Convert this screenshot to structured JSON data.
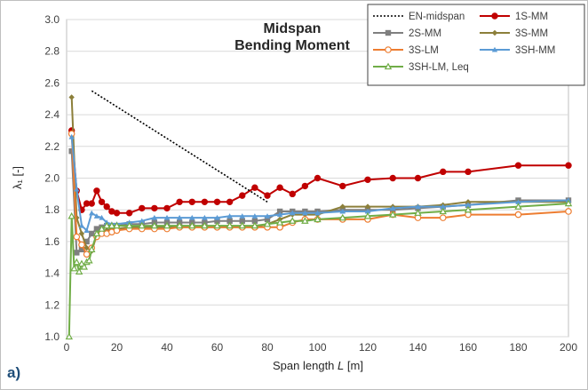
{
  "chart_data": {
    "type": "line",
    "title": "Midspan",
    "subtitle": "Bending Moment",
    "xlabel": "Span length",
    "xlabel_var": "L",
    "xlabel_unit": "[m]",
    "ylabel": "λ₁ [-]",
    "panel_label": "a)",
    "xlim": [
      0,
      200
    ],
    "ylim": [
      1.0,
      3.0
    ],
    "xticks": [
      "0",
      "20",
      "40",
      "60",
      "80",
      "100",
      "120",
      "140",
      "160",
      "180",
      "200"
    ],
    "yticks": [
      "1.0",
      "1.2",
      "1.4",
      "1.6",
      "1.8",
      "2.0",
      "2.2",
      "2.4",
      "2.6",
      "2.8",
      "3.0"
    ],
    "grid": "horizontal",
    "legend_position": "top-right",
    "series": [
      {
        "name": "EN-midspan",
        "color": "#000000",
        "style": "dotted",
        "marker": "none",
        "x": [
          10,
          80
        ],
        "y": [
          2.55,
          1.85
        ]
      },
      {
        "name": "1S-MM",
        "color": "#c00000",
        "style": "solid",
        "marker": "circle-filled",
        "x": [
          2,
          4,
          6,
          8,
          10,
          12,
          14,
          16,
          18,
          20,
          25,
          30,
          35,
          40,
          45,
          50,
          55,
          60,
          65,
          70,
          75,
          80,
          85,
          90,
          95,
          100,
          110,
          120,
          130,
          140,
          150,
          160,
          180,
          200
        ],
        "y": [
          2.3,
          1.92,
          1.8,
          1.84,
          1.84,
          1.92,
          1.85,
          1.82,
          1.79,
          1.78,
          1.78,
          1.81,
          1.81,
          1.81,
          1.85,
          1.85,
          1.85,
          1.85,
          1.85,
          1.89,
          1.94,
          1.89,
          1.94,
          1.9,
          1.95,
          2.0,
          1.95,
          1.99,
          2.0,
          2.0,
          2.04,
          2.04,
          2.08,
          2.08
        ]
      },
      {
        "name": "2S-MM",
        "color": "#7f7f7f",
        "style": "solid",
        "marker": "square-filled",
        "x": [
          2,
          4,
          6,
          8,
          10,
          12,
          14,
          16,
          18,
          20,
          25,
          30,
          35,
          40,
          45,
          50,
          55,
          60,
          65,
          70,
          75,
          80,
          85,
          90,
          95,
          100,
          110,
          120,
          130,
          140,
          150,
          160,
          180,
          200
        ],
        "y": [
          2.17,
          1.53,
          1.55,
          1.6,
          1.65,
          1.68,
          1.69,
          1.7,
          1.7,
          1.7,
          1.71,
          1.71,
          1.72,
          1.72,
          1.72,
          1.72,
          1.72,
          1.73,
          1.73,
          1.73,
          1.73,
          1.74,
          1.79,
          1.79,
          1.79,
          1.79,
          1.8,
          1.8,
          1.8,
          1.81,
          1.82,
          1.83,
          1.86,
          1.86
        ]
      },
      {
        "name": "3S-MM",
        "color": "#8c7f3a",
        "style": "solid",
        "marker": "diamond-filled",
        "x": [
          2,
          4,
          6,
          8,
          10,
          12,
          14,
          16,
          18,
          20,
          25,
          30,
          35,
          40,
          45,
          50,
          55,
          60,
          65,
          70,
          75,
          80,
          85,
          90,
          95,
          100,
          110,
          120,
          130,
          140,
          150,
          160,
          180,
          200
        ],
        "y": [
          2.51,
          1.75,
          1.65,
          1.56,
          1.54,
          1.64,
          1.66,
          1.67,
          1.68,
          1.68,
          1.69,
          1.69,
          1.69,
          1.69,
          1.69,
          1.69,
          1.69,
          1.69,
          1.69,
          1.69,
          1.69,
          1.71,
          1.74,
          1.77,
          1.77,
          1.77,
          1.82,
          1.82,
          1.82,
          1.82,
          1.83,
          1.85,
          1.85,
          1.85
        ]
      },
      {
        "name": "3S-LM",
        "color": "#ed7d31",
        "style": "solid",
        "marker": "circle-open",
        "x": [
          2,
          4,
          6,
          8,
          10,
          12,
          14,
          16,
          18,
          20,
          25,
          30,
          35,
          40,
          45,
          50,
          55,
          60,
          65,
          70,
          75,
          80,
          85,
          90,
          95,
          100,
          110,
          120,
          130,
          140,
          150,
          160,
          180,
          200
        ],
        "y": [
          2.28,
          1.63,
          1.58,
          1.52,
          1.56,
          1.63,
          1.65,
          1.65,
          1.66,
          1.67,
          1.68,
          1.68,
          1.68,
          1.68,
          1.69,
          1.69,
          1.69,
          1.69,
          1.69,
          1.69,
          1.69,
          1.69,
          1.69,
          1.72,
          1.74,
          1.74,
          1.74,
          1.74,
          1.77,
          1.75,
          1.75,
          1.77,
          1.77,
          1.79
        ]
      },
      {
        "name": "3SH-MM",
        "color": "#5b9bd5",
        "style": "solid",
        "marker": "triangle-filled",
        "x": [
          2,
          4,
          6,
          8,
          10,
          12,
          14,
          16,
          18,
          20,
          25,
          30,
          35,
          40,
          45,
          50,
          55,
          60,
          65,
          70,
          75,
          80,
          85,
          90,
          95,
          100,
          110,
          120,
          130,
          140,
          150,
          160,
          180,
          200
        ],
        "y": [
          2.26,
          1.93,
          1.7,
          1.67,
          1.78,
          1.76,
          1.75,
          1.72,
          1.71,
          1.71,
          1.72,
          1.73,
          1.75,
          1.75,
          1.75,
          1.75,
          1.75,
          1.75,
          1.76,
          1.76,
          1.76,
          1.76,
          1.77,
          1.78,
          1.78,
          1.78,
          1.79,
          1.79,
          1.81,
          1.82,
          1.82,
          1.83,
          1.85,
          1.86
        ]
      },
      {
        "name": "3SH-LM, Leq",
        "color": "#70ad47",
        "style": "solid",
        "marker": "triangle-open",
        "x": [
          1,
          2,
          3,
          4,
          5,
          6,
          7,
          8,
          9,
          10,
          12,
          14,
          16,
          18,
          20,
          25,
          30,
          35,
          40,
          45,
          50,
          55,
          60,
          65,
          70,
          75,
          80,
          85,
          90,
          95,
          100,
          110,
          120,
          130,
          140,
          150,
          160,
          180,
          200
        ],
        "y": [
          1.0,
          1.76,
          1.43,
          1.47,
          1.41,
          1.46,
          1.44,
          1.47,
          1.48,
          1.55,
          1.65,
          1.68,
          1.7,
          1.7,
          1.7,
          1.7,
          1.7,
          1.7,
          1.7,
          1.7,
          1.7,
          1.7,
          1.7,
          1.7,
          1.7,
          1.7,
          1.71,
          1.72,
          1.73,
          1.73,
          1.74,
          1.75,
          1.76,
          1.77,
          1.78,
          1.79,
          1.8,
          1.82,
          1.84
        ]
      }
    ]
  }
}
